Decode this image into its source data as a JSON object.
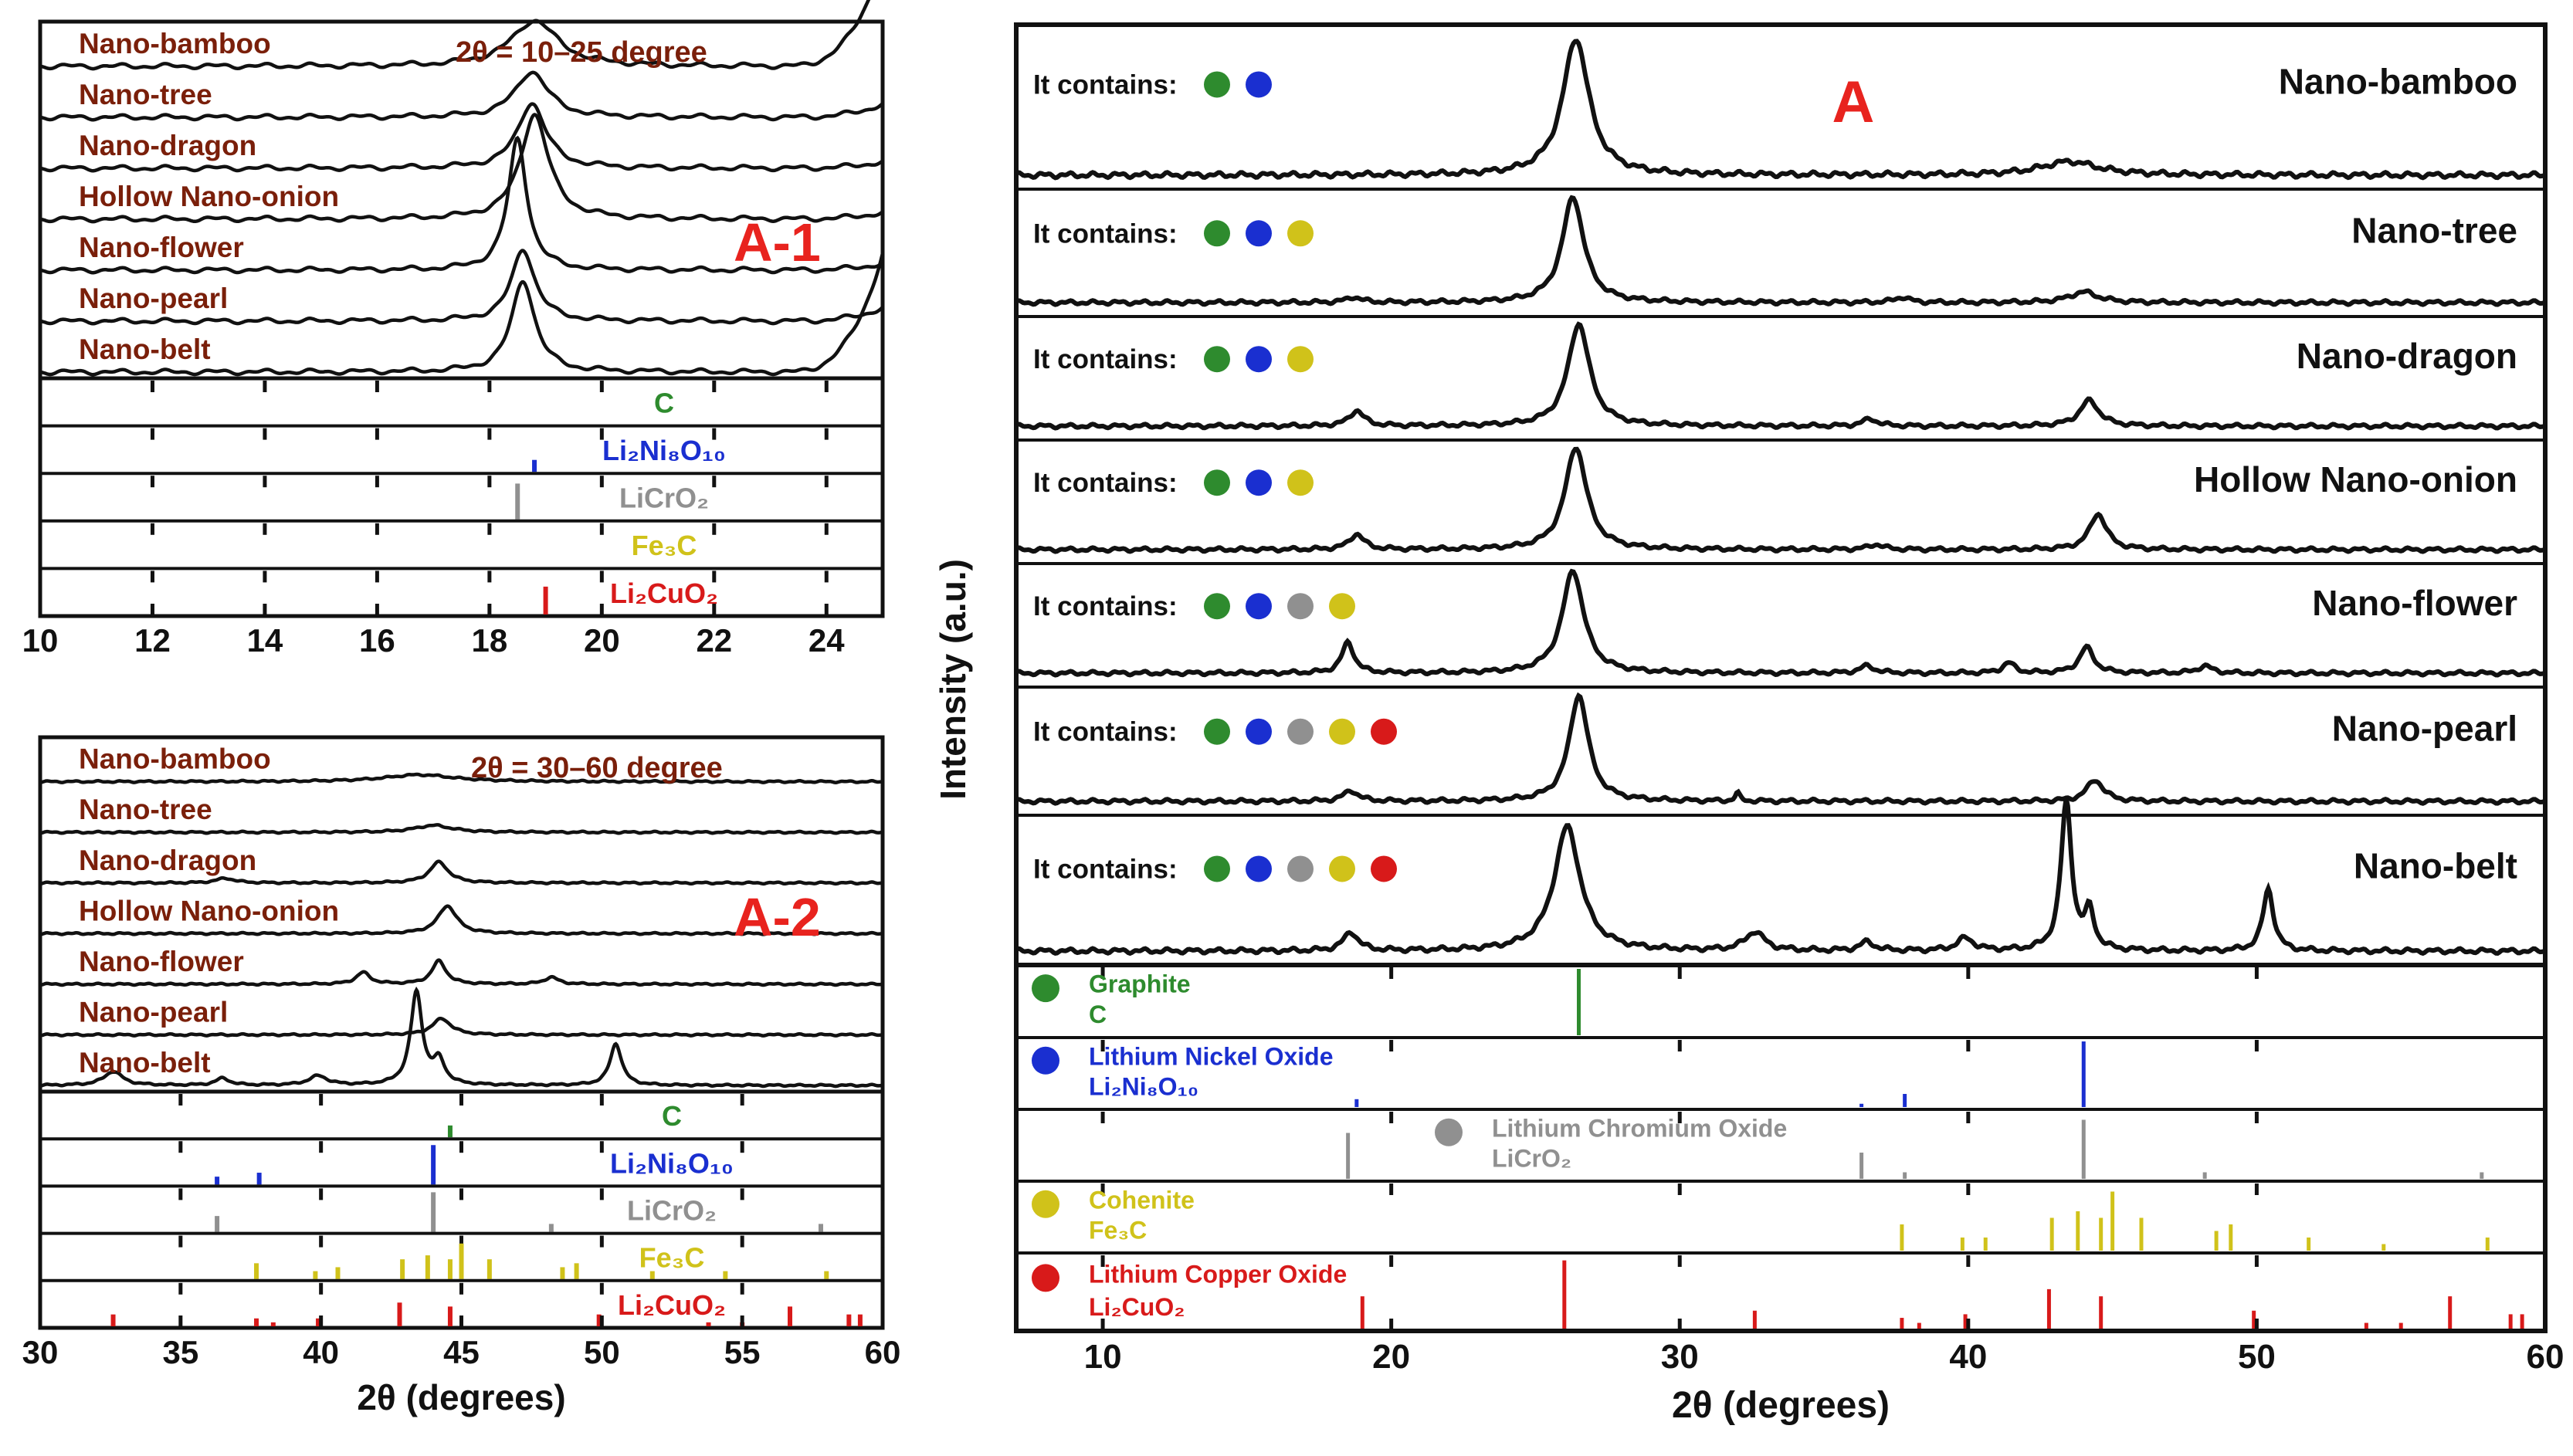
{
  "colors": {
    "frame": "#111111",
    "trace": "#111111",
    "sample_label": "#7a1f0a",
    "panel_label": "#e8231e",
    "phase_C": "#2e8b2e",
    "phase_Ni": "#1a2fd0",
    "phase_Cr": "#909090",
    "phase_Fe": "#d0c21a",
    "phase_Cu": "#d81a1a"
  },
  "chart_data": [
    {
      "id": "A-1",
      "type": "line",
      "panel_label": "A-1",
      "annotation": "2θ = 10–25 degree",
      "xlim": [
        10,
        25
      ],
      "xticks": [
        "10",
        "12",
        "14",
        "16",
        "18",
        "20",
        "22",
        "24"
      ],
      "xlabel": "",
      "series": [
        {
          "name": "Nano-bamboo",
          "peaks": [
            {
              "x": 18.8,
              "h": 0.35,
              "w": 0.5
            }
          ],
          "rise_end": 0.8
        },
        {
          "name": "Nano-tree",
          "peaks": [
            {
              "x": 18.75,
              "h": 0.35,
              "w": 0.35
            }
          ],
          "rise_end": 0.1
        },
        {
          "name": "Nano-dragon",
          "peaks": [
            {
              "x": 18.75,
              "h": 0.5,
              "w": 0.3
            }
          ],
          "rise_end": 0.05
        },
        {
          "name": "Hollow Nano-onion",
          "peaks": [
            {
              "x": 18.8,
              "h": 0.8,
              "w": 0.3
            }
          ],
          "rise_end": 0.05
        },
        {
          "name": "Nano-flower",
          "peaks": [
            {
              "x": 18.5,
              "h": 1.0,
              "w": 0.2
            }
          ],
          "rise_end": 0.05
        },
        {
          "name": "Nano-pearl",
          "peaks": [
            {
              "x": 18.6,
              "h": 0.55,
              "w": 0.25
            }
          ],
          "rise_end": 0.1
        },
        {
          "name": "Nano-belt",
          "peaks": [
            {
              "x": 18.6,
              "h": 0.7,
              "w": 0.25
            }
          ],
          "rise_end": 0.9
        }
      ],
      "references": [
        {
          "label": "C",
          "color": "#2e8b2e",
          "lines": []
        },
        {
          "label": "Li₂Ni₈O₁₀",
          "color": "#1a2fd0",
          "lines": [
            [
              18.8,
              0.3
            ]
          ]
        },
        {
          "label": "LiCrO₂",
          "color": "#909090",
          "lines": [
            [
              18.5,
              0.9
            ]
          ]
        },
        {
          "label": "Fe₃C",
          "color": "#d0c21a",
          "lines": []
        },
        {
          "label": "Li₂CuO₂",
          "color": "#d81a1a",
          "lines": [
            [
              19.0,
              0.7
            ]
          ]
        }
      ]
    },
    {
      "id": "A-2",
      "type": "line",
      "panel_label": "A-2",
      "annotation": "2θ = 30–60 degree",
      "xlim": [
        30,
        60
      ],
      "xticks": [
        "30",
        "35",
        "40",
        "45",
        "50",
        "55",
        "60"
      ],
      "xlabel": "2θ (degrees)",
      "series": [
        {
          "name": "Nano-bamboo",
          "peaks": [
            {
              "x": 43.5,
              "h": 0.15,
              "w": 1.5
            }
          ]
        },
        {
          "name": "Nano-tree",
          "peaks": [
            {
              "x": 44.0,
              "h": 0.15,
              "w": 0.8
            }
          ]
        },
        {
          "name": "Nano-dragon",
          "peaks": [
            {
              "x": 44.2,
              "h": 0.45,
              "w": 0.4
            },
            {
              "x": 36.6,
              "h": 0.1,
              "w": 0.4
            }
          ]
        },
        {
          "name": "Hollow Nano-onion",
          "peaks": [
            {
              "x": 44.5,
              "h": 0.6,
              "w": 0.4
            }
          ]
        },
        {
          "name": "Nano-flower",
          "peaks": [
            {
              "x": 41.5,
              "h": 0.25,
              "w": 0.3
            },
            {
              "x": 44.2,
              "h": 0.5,
              "w": 0.3
            },
            {
              "x": 48.2,
              "h": 0.15,
              "w": 0.3
            }
          ]
        },
        {
          "name": "Nano-pearl",
          "peaks": [
            {
              "x": 44.3,
              "h": 0.35,
              "w": 0.4
            }
          ]
        },
        {
          "name": "Nano-belt",
          "peaks": [
            {
              "x": 32.6,
              "h": 0.3,
              "w": 0.4
            },
            {
              "x": 36.5,
              "h": 0.15,
              "w": 0.3
            },
            {
              "x": 39.9,
              "h": 0.2,
              "w": 0.4
            },
            {
              "x": 43.4,
              "h": 2.0,
              "w": 0.25
            },
            {
              "x": 44.2,
              "h": 0.5,
              "w": 0.25
            },
            {
              "x": 50.5,
              "h": 0.9,
              "w": 0.25
            }
          ]
        }
      ],
      "references": [
        {
          "label": "C",
          "color": "#2e8b2e",
          "lines": [
            [
              44.6,
              0.3
            ]
          ]
        },
        {
          "label": "Li₂Ni₈O₁₀",
          "color": "#1a2fd0",
          "lines": [
            [
              36.3,
              0.2
            ],
            [
              37.8,
              0.3
            ],
            [
              44.0,
              1.0
            ]
          ]
        },
        {
          "label": "LiCrO₂",
          "color": "#909090",
          "lines": [
            [
              36.3,
              0.4
            ],
            [
              44.0,
              1.0
            ],
            [
              48.2,
              0.2
            ],
            [
              57.8,
              0.2
            ]
          ]
        },
        {
          "label": "Fe₃C",
          "color": "#d0c21a",
          "lines": [
            [
              37.7,
              0.4
            ],
            [
              39.8,
              0.2
            ],
            [
              40.6,
              0.3
            ],
            [
              42.9,
              0.5
            ],
            [
              43.8,
              0.6
            ],
            [
              44.6,
              0.5
            ],
            [
              45.0,
              0.9
            ],
            [
              46.0,
              0.5
            ],
            [
              48.6,
              0.3
            ],
            [
              49.1,
              0.4
            ],
            [
              51.8,
              0.2
            ],
            [
              54.4,
              0.2
            ],
            [
              58.0,
              0.2
            ]
          ]
        },
        {
          "label": "Li₂CuO₂",
          "color": "#d81a1a",
          "lines": [
            [
              32.6,
              0.3
            ],
            [
              37.7,
              0.2
            ],
            [
              38.3,
              0.1
            ],
            [
              39.9,
              0.2
            ],
            [
              42.8,
              0.6
            ],
            [
              44.6,
              0.5
            ],
            [
              49.9,
              0.3
            ],
            [
              53.8,
              0.1
            ],
            [
              55.0,
              0.1
            ],
            [
              56.7,
              0.5
            ],
            [
              58.8,
              0.3
            ],
            [
              59.2,
              0.3
            ]
          ]
        }
      ]
    },
    {
      "id": "A",
      "type": "line",
      "panel_label": "A",
      "ylabel": "Intensity (a.u.)",
      "xlabel": "2θ (degrees)",
      "xlim": [
        7,
        60
      ],
      "xticks": [
        "10",
        "20",
        "30",
        "40",
        "50",
        "60"
      ],
      "contains_label": "It contains:",
      "series": [
        {
          "name": "Nano-bamboo",
          "contains": [
            "C",
            "Ni"
          ],
          "peaks": [
            {
              "x": 26.4,
              "h": 1.0,
              "w": 0.55
            },
            {
              "x": 43.5,
              "h": 0.1,
              "w": 1.2
            }
          ]
        },
        {
          "name": "Nano-tree",
          "contains": [
            "C",
            "Ni",
            "Fe"
          ],
          "peaks": [
            {
              "x": 26.3,
              "h": 1.0,
              "w": 0.45
            },
            {
              "x": 18.7,
              "h": 0.05,
              "w": 0.3
            },
            {
              "x": 37.7,
              "h": 0.05,
              "w": 0.3
            },
            {
              "x": 44.0,
              "h": 0.1,
              "w": 0.6
            }
          ]
        },
        {
          "name": "Nano-dragon",
          "contains": [
            "C",
            "Ni",
            "Fe"
          ],
          "peaks": [
            {
              "x": 26.5,
              "h": 1.0,
              "w": 0.45
            },
            {
              "x": 18.8,
              "h": 0.15,
              "w": 0.3
            },
            {
              "x": 36.6,
              "h": 0.07,
              "w": 0.3
            },
            {
              "x": 44.2,
              "h": 0.25,
              "w": 0.4
            }
          ]
        },
        {
          "name": "Hollow Nano-onion",
          "contains": [
            "C",
            "Ni",
            "Fe"
          ],
          "peaks": [
            {
              "x": 26.4,
              "h": 1.0,
              "w": 0.45
            },
            {
              "x": 18.8,
              "h": 0.15,
              "w": 0.3
            },
            {
              "x": 36.8,
              "h": 0.05,
              "w": 0.3
            },
            {
              "x": 44.5,
              "h": 0.35,
              "w": 0.35
            }
          ]
        },
        {
          "name": "Nano-flower",
          "contains": [
            "C",
            "Ni",
            "Cr",
            "Fe"
          ],
          "peaks": [
            {
              "x": 26.3,
              "h": 1.0,
              "w": 0.45
            },
            {
              "x": 18.5,
              "h": 0.3,
              "w": 0.25
            },
            {
              "x": 36.5,
              "h": 0.07,
              "w": 0.3
            },
            {
              "x": 41.4,
              "h": 0.1,
              "w": 0.25
            },
            {
              "x": 44.1,
              "h": 0.25,
              "w": 0.3
            },
            {
              "x": 48.2,
              "h": 0.07,
              "w": 0.3
            }
          ]
        },
        {
          "name": "Nano-pearl",
          "contains": [
            "C",
            "Ni",
            "Cr",
            "Fe",
            "Cu"
          ],
          "peaks": [
            {
              "x": 26.5,
              "h": 1.0,
              "w": 0.4
            },
            {
              "x": 18.6,
              "h": 0.1,
              "w": 0.3
            },
            {
              "x": 32.0,
              "h": 0.07,
              "w": 0.1
            },
            {
              "x": 44.4,
              "h": 0.2,
              "w": 0.35
            }
          ]
        },
        {
          "name": "Nano-belt",
          "contains": [
            "C",
            "Ni",
            "Cr",
            "Fe",
            "Cu"
          ],
          "peaks": [
            {
              "x": 26.1,
              "h": 1.0,
              "w": 0.55
            },
            {
              "x": 18.6,
              "h": 0.15,
              "w": 0.3
            },
            {
              "x": 32.6,
              "h": 0.15,
              "w": 0.4
            },
            {
              "x": 36.5,
              "h": 0.07,
              "w": 0.3
            },
            {
              "x": 39.9,
              "h": 0.1,
              "w": 0.35
            },
            {
              "x": 43.4,
              "h": 1.2,
              "w": 0.22
            },
            {
              "x": 44.2,
              "h": 0.3,
              "w": 0.2
            },
            {
              "x": 50.4,
              "h": 0.5,
              "w": 0.22
            }
          ]
        }
      ],
      "references": [
        {
          "key": "C",
          "name": "Graphite",
          "formula": "C",
          "color": "#2e8b2e",
          "lines": [
            [
              26.5,
              1.0
            ]
          ]
        },
        {
          "key": "Ni",
          "name": "Lithium Nickel Oxide",
          "formula": "Li₂Ni₈O₁₀",
          "color": "#1a2fd0",
          "lines": [
            [
              18.8,
              0.12
            ],
            [
              36.3,
              0.05
            ],
            [
              37.8,
              0.2
            ],
            [
              44.0,
              1.0
            ]
          ]
        },
        {
          "key": "Cr",
          "name": "Lithium Chromium Oxide",
          "formula": "LiCrO₂",
          "color": "#909090",
          "lines": [
            [
              18.5,
              0.7
            ],
            [
              36.3,
              0.4
            ],
            [
              37.8,
              0.1
            ],
            [
              44.0,
              0.9
            ],
            [
              48.2,
              0.1
            ],
            [
              57.8,
              0.1
            ]
          ]
        },
        {
          "key": "Fe",
          "name": "Cohenite",
          "formula": "Fe₃C",
          "color": "#d0c21a",
          "lines": [
            [
              37.7,
              0.4
            ],
            [
              39.8,
              0.2
            ],
            [
              40.6,
              0.2
            ],
            [
              42.9,
              0.5
            ],
            [
              43.8,
              0.6
            ],
            [
              44.6,
              0.5
            ],
            [
              45.0,
              0.9
            ],
            [
              46.0,
              0.5
            ],
            [
              48.6,
              0.3
            ],
            [
              49.1,
              0.4
            ],
            [
              51.8,
              0.2
            ],
            [
              54.4,
              0.1
            ],
            [
              58.0,
              0.2
            ]
          ]
        },
        {
          "key": "Cu",
          "name": "Lithium Copper Oxide",
          "formula": "Li₂CuO₂",
          "color": "#d81a1a",
          "lines": [
            [
              19.0,
              0.45
            ],
            [
              26.0,
              0.95
            ],
            [
              32.6,
              0.25
            ],
            [
              37.7,
              0.15
            ],
            [
              38.3,
              0.08
            ],
            [
              39.9,
              0.2
            ],
            [
              42.8,
              0.55
            ],
            [
              44.6,
              0.45
            ],
            [
              49.9,
              0.25
            ],
            [
              53.8,
              0.08
            ],
            [
              55.0,
              0.08
            ],
            [
              56.7,
              0.45
            ],
            [
              58.8,
              0.2
            ],
            [
              59.2,
              0.2
            ]
          ]
        }
      ]
    }
  ]
}
